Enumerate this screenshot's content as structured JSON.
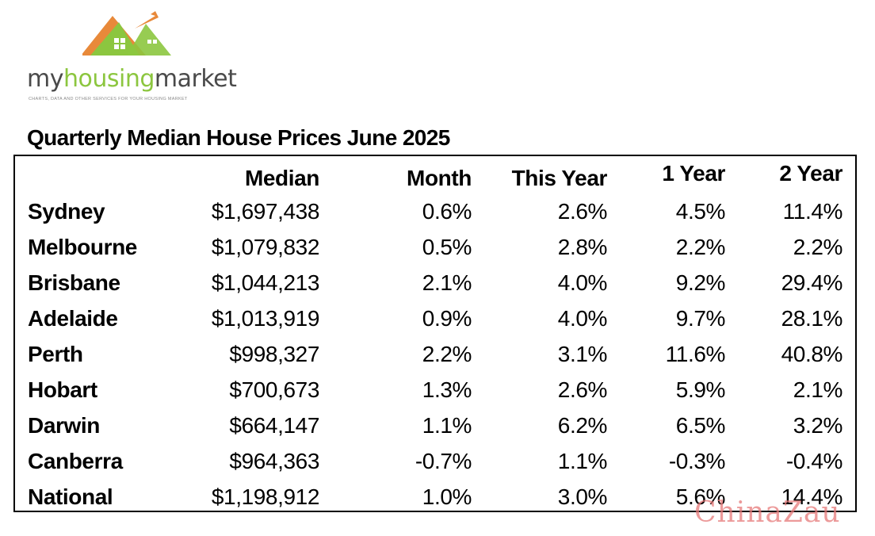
{
  "brand": {
    "logo_prefix": "my",
    "logo_highlight": "housing",
    "logo_suffix": "market",
    "tagline": "CHARTS, DATA AND OTHER SERVICES FOR YOUR HOUSING MARKET",
    "colors": {
      "roof": "#e8893a",
      "house": "#8cc63f",
      "text": "#4a4a4a"
    }
  },
  "title": "Quarterly Median House Prices June 2025",
  "table": {
    "headers": [
      "Median",
      "Month",
      "This Year",
      "1 Year",
      "2 Year"
    ],
    "rows": [
      {
        "city": "Sydney",
        "median": "$1,697,438",
        "month": "0.6%",
        "this_year": "2.6%",
        "one_year": "4.5%",
        "two_year": "11.4%"
      },
      {
        "city": "Melbourne",
        "median": "$1,079,832",
        "month": "0.5%",
        "this_year": "2.8%",
        "one_year": "2.2%",
        "two_year": "2.2%"
      },
      {
        "city": "Brisbane",
        "median": "$1,044,213",
        "month": "2.1%",
        "this_year": "4.0%",
        "one_year": "9.2%",
        "two_year": "29.4%"
      },
      {
        "city": "Adelaide",
        "median": "$1,013,919",
        "month": "0.9%",
        "this_year": "4.0%",
        "one_year": "9.7%",
        "two_year": "28.1%"
      },
      {
        "city": "Perth",
        "median": "$998,327",
        "month": "2.2%",
        "this_year": "3.1%",
        "one_year": "11.6%",
        "two_year": "40.8%"
      },
      {
        "city": "Hobart",
        "median": "$700,673",
        "month": "1.3%",
        "this_year": "2.6%",
        "one_year": "5.9%",
        "two_year": "2.1%"
      },
      {
        "city": "Darwin",
        "median": "$664,147",
        "month": "1.1%",
        "this_year": "6.2%",
        "one_year": "6.5%",
        "two_year": "3.2%"
      },
      {
        "city": "Canberra",
        "median": "$964,363",
        "month": "-0.7%",
        "this_year": "1.1%",
        "one_year": "-0.3%",
        "two_year": "-0.4%"
      },
      {
        "city": "National",
        "median": "$1,198,912",
        "month": "1.0%",
        "this_year": "3.0%",
        "one_year": "5.6%",
        "two_year": "14.4%"
      }
    ]
  },
  "watermark": "ChinaZau"
}
